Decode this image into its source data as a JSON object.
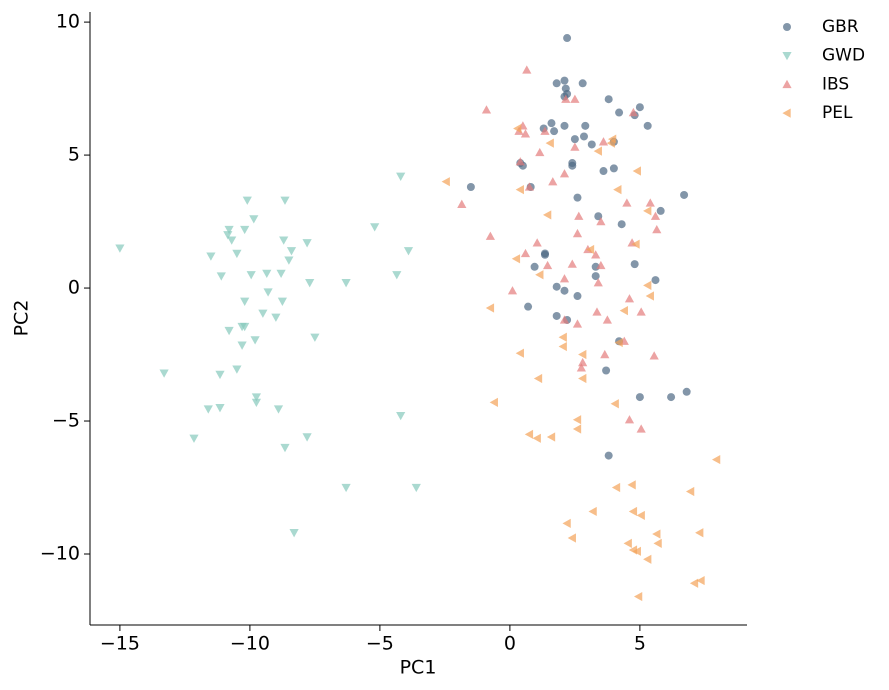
{
  "chart_data": {
    "type": "scatter",
    "x_label": "PC1",
    "y_label": "PC2",
    "xlim": [
      -16.15,
      9.12
    ],
    "ylim": [
      -12.67,
      10.38
    ],
    "xticks": [
      {
        "value": -15,
        "label": "−15"
      },
      {
        "value": -10,
        "label": "−10"
      },
      {
        "value": -5,
        "label": "−5"
      },
      0,
      5
    ],
    "yticks": [
      {
        "value": -10,
        "label": "−10"
      },
      {
        "value": -5,
        "label": "−5"
      },
      0,
      5,
      10
    ],
    "grid": false,
    "legend": "outside upper right",
    "series": [
      {
        "name": "GBR",
        "color": "#4f6a84",
        "marker": "circle",
        "x": [
          2.2,
          1.8,
          2.1,
          2.8,
          2.15,
          2.2,
          2.1,
          3.8,
          4.2,
          5.0,
          4.8,
          5.3,
          1.6,
          1.3,
          1.7,
          2.1,
          2.9,
          2.85,
          2.5,
          3.15,
          4.0,
          0.4,
          0.5,
          2.4,
          2.4,
          4.0,
          3.6,
          -1.5,
          0.8,
          2.6,
          6.7,
          5.8,
          3.4,
          4.3,
          1.35,
          1.35,
          0.95,
          3.3,
          4.8,
          3.3,
          5.6,
          1.8,
          2.1,
          2.6,
          0.7,
          1.8,
          2.2,
          4.2,
          3.7,
          3.8,
          5.0,
          6.2,
          6.8
        ],
        "values": [
          9.4,
          7.7,
          7.8,
          7.7,
          7.5,
          7.3,
          7.2,
          7.1,
          6.6,
          6.8,
          6.5,
          6.1,
          6.2,
          6.0,
          5.9,
          6.1,
          6.1,
          5.7,
          5.6,
          5.4,
          5.5,
          4.7,
          4.6,
          4.6,
          4.7,
          4.5,
          4.4,
          3.8,
          3.8,
          3.4,
          3.5,
          2.9,
          2.7,
          2.4,
          1.3,
          1.25,
          0.8,
          0.8,
          0.9,
          0.45,
          0.3,
          0.05,
          -0.1,
          -0.3,
          -0.7,
          -1.05,
          -1.2,
          -2.0,
          -3.1,
          -6.3,
          -4.1,
          -4.1,
          -3.9
        ]
      },
      {
        "name": "GWD",
        "color": "#86c9bc",
        "marker": "triangle-down",
        "x": [
          -15.0,
          -13.3,
          -10.1,
          -10.8,
          -10.85,
          -10.7,
          -10.2,
          -9.85,
          -8.65,
          -4.2,
          -5.2,
          -3.9,
          -4.35,
          -6.3,
          -7.8,
          -8.7,
          -8.4,
          -8.5,
          -10.5,
          -11.5,
          -9.35,
          -8.8,
          -9.95,
          -11.1,
          -7.7,
          -9.3,
          -10.2,
          -8.75,
          -9.5,
          -9.0,
          -7.5,
          -10.8,
          -10.3,
          -10.2,
          -9.8,
          -10.3,
          -10.5,
          -11.15,
          -9.75,
          -9.75,
          -11.6,
          -11.15,
          -8.9,
          -4.2,
          -12.15,
          -7.8,
          -8.65,
          -6.3,
          -3.6,
          -8.3
        ],
        "values": [
          1.5,
          -3.2,
          3.3,
          2.2,
          2.0,
          1.8,
          2.2,
          2.6,
          3.3,
          4.2,
          2.3,
          1.4,
          0.5,
          0.2,
          1.7,
          1.8,
          1.4,
          1.05,
          1.3,
          1.2,
          0.55,
          0.55,
          0.5,
          0.45,
          0.2,
          -0.15,
          -0.5,
          -0.5,
          -0.95,
          -1.1,
          -1.85,
          -1.6,
          -1.45,
          -1.45,
          -1.95,
          -2.15,
          -3.05,
          -3.25,
          -4.1,
          -4.3,
          -4.55,
          -4.5,
          -4.55,
          -4.8,
          -5.65,
          -5.6,
          -6.0,
          -7.5,
          -7.5,
          -9.2
        ]
      },
      {
        "name": "IBS",
        "color": "#e47c7c",
        "marker": "triangle-up",
        "x": [
          0.65,
          -0.9,
          2.15,
          2.5,
          4.75,
          0.5,
          0.35,
          0.6,
          1.35,
          3.6,
          1.15,
          2.5,
          0.4,
          2.1,
          0.75,
          1.65,
          -1.85,
          5.4,
          4.5,
          5.6,
          2.65,
          3.5,
          5.65,
          2.6,
          -0.75,
          1.05,
          4.7,
          0.6,
          3.0,
          3.3,
          2.4,
          1.45,
          3.5,
          2.1,
          3.4,
          0.1,
          4.6,
          3.35,
          2.1,
          2.6,
          3.75,
          5.05,
          4.4,
          3.65,
          5.55,
          2.8,
          2.75,
          4.6,
          5.05
        ],
        "values": [
          8.2,
          6.7,
          7.1,
          7.1,
          6.6,
          6.1,
          5.9,
          5.8,
          5.9,
          5.5,
          5.1,
          5.3,
          4.75,
          4.3,
          3.8,
          4.0,
          3.15,
          3.2,
          3.2,
          2.7,
          2.7,
          2.5,
          2.2,
          2.05,
          1.95,
          1.7,
          1.7,
          1.3,
          1.45,
          1.25,
          0.9,
          0.85,
          0.85,
          0.35,
          0.2,
          -0.1,
          -0.4,
          -0.9,
          -1.2,
          -1.35,
          -1.2,
          -0.9,
          -2.0,
          -2.5,
          -2.55,
          -2.8,
          -3.0,
          -4.95,
          -5.3
        ]
      },
      {
        "name": "PEL",
        "color": "#f3a358",
        "marker": "triangle-left",
        "x": [
          -2.45,
          0.3,
          1.55,
          3.4,
          3.9,
          3.95,
          4.9,
          4.15,
          0.4,
          1.45,
          5.3,
          3.1,
          4.85,
          0.25,
          1.15,
          5.3,
          5.4,
          -0.75,
          4.4,
          2.05,
          2.05,
          4.2,
          2.8,
          0.4,
          1.1,
          2.8,
          -0.6,
          4.05,
          2.6,
          0.75,
          1.05,
          1.6,
          2.6,
          7.95,
          4.1,
          4.7,
          6.95,
          3.2,
          4.75,
          5.05,
          2.2,
          5.65,
          7.3,
          2.4,
          4.55,
          5.7,
          4.75,
          4.9,
          5.3,
          7.1,
          7.35,
          4.95
        ],
        "values": [
          4.0,
          6.0,
          5.45,
          5.15,
          5.45,
          5.6,
          4.4,
          3.7,
          3.7,
          2.75,
          2.9,
          1.45,
          1.65,
          1.1,
          0.5,
          0.1,
          -0.3,
          -0.75,
          -0.85,
          -1.85,
          -2.2,
          -2.05,
          -2.5,
          -2.45,
          -3.4,
          -3.4,
          -4.3,
          -4.35,
          -4.95,
          -5.5,
          -5.65,
          -5.6,
          -5.3,
          -6.45,
          -7.5,
          -7.4,
          -7.65,
          -8.4,
          -8.4,
          -8.55,
          -8.85,
          -9.25,
          -9.2,
          -9.4,
          -9.6,
          -9.6,
          -9.85,
          -9.9,
          -10.2,
          -11.1,
          -11.0,
          -11.6
        ]
      }
    ]
  }
}
